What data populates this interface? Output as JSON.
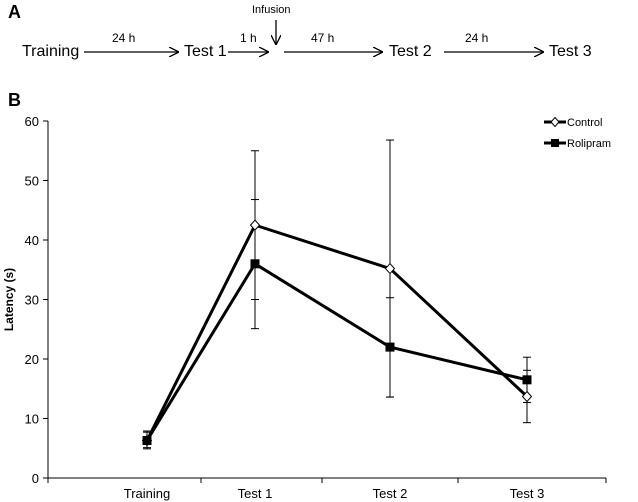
{
  "panel_a": {
    "letter": "A",
    "stages": [
      "Training",
      "Test 1",
      "Test 2",
      "Test 3"
    ],
    "intervals": [
      "24 h",
      "1 h",
      "47 h",
      "24 h"
    ],
    "infusion_label": "Infusion"
  },
  "panel_b": {
    "letter": "B"
  },
  "chart_data": {
    "type": "line",
    "title": "",
    "xlabel": "",
    "ylabel": "Latency (s)",
    "categories": [
      "Training",
      "Test 1",
      "Test 2",
      "Test 3"
    ],
    "ylim": [
      0,
      60
    ],
    "yticks": [
      0,
      10,
      20,
      30,
      40,
      50,
      60
    ],
    "grid": false,
    "legend_position": "top-right",
    "series": [
      {
        "name": "Control",
        "marker": "open-diamond",
        "color": "#000000",
        "values": [
          6.3,
          42.5,
          35.2,
          13.7
        ],
        "error_upper": [
          7.9,
          55.0,
          56.8,
          18.1
        ],
        "error_lower": [
          4.9,
          30.0,
          13.6,
          9.3
        ]
      },
      {
        "name": "Rolipram",
        "marker": "filled-square",
        "color": "#000000",
        "values": [
          6.3,
          36.0,
          22.0,
          16.5
        ],
        "error_upper": [
          7.7,
          46.8,
          30.3,
          20.3
        ],
        "error_lower": [
          5.1,
          25.1,
          13.6,
          12.7
        ]
      }
    ]
  }
}
